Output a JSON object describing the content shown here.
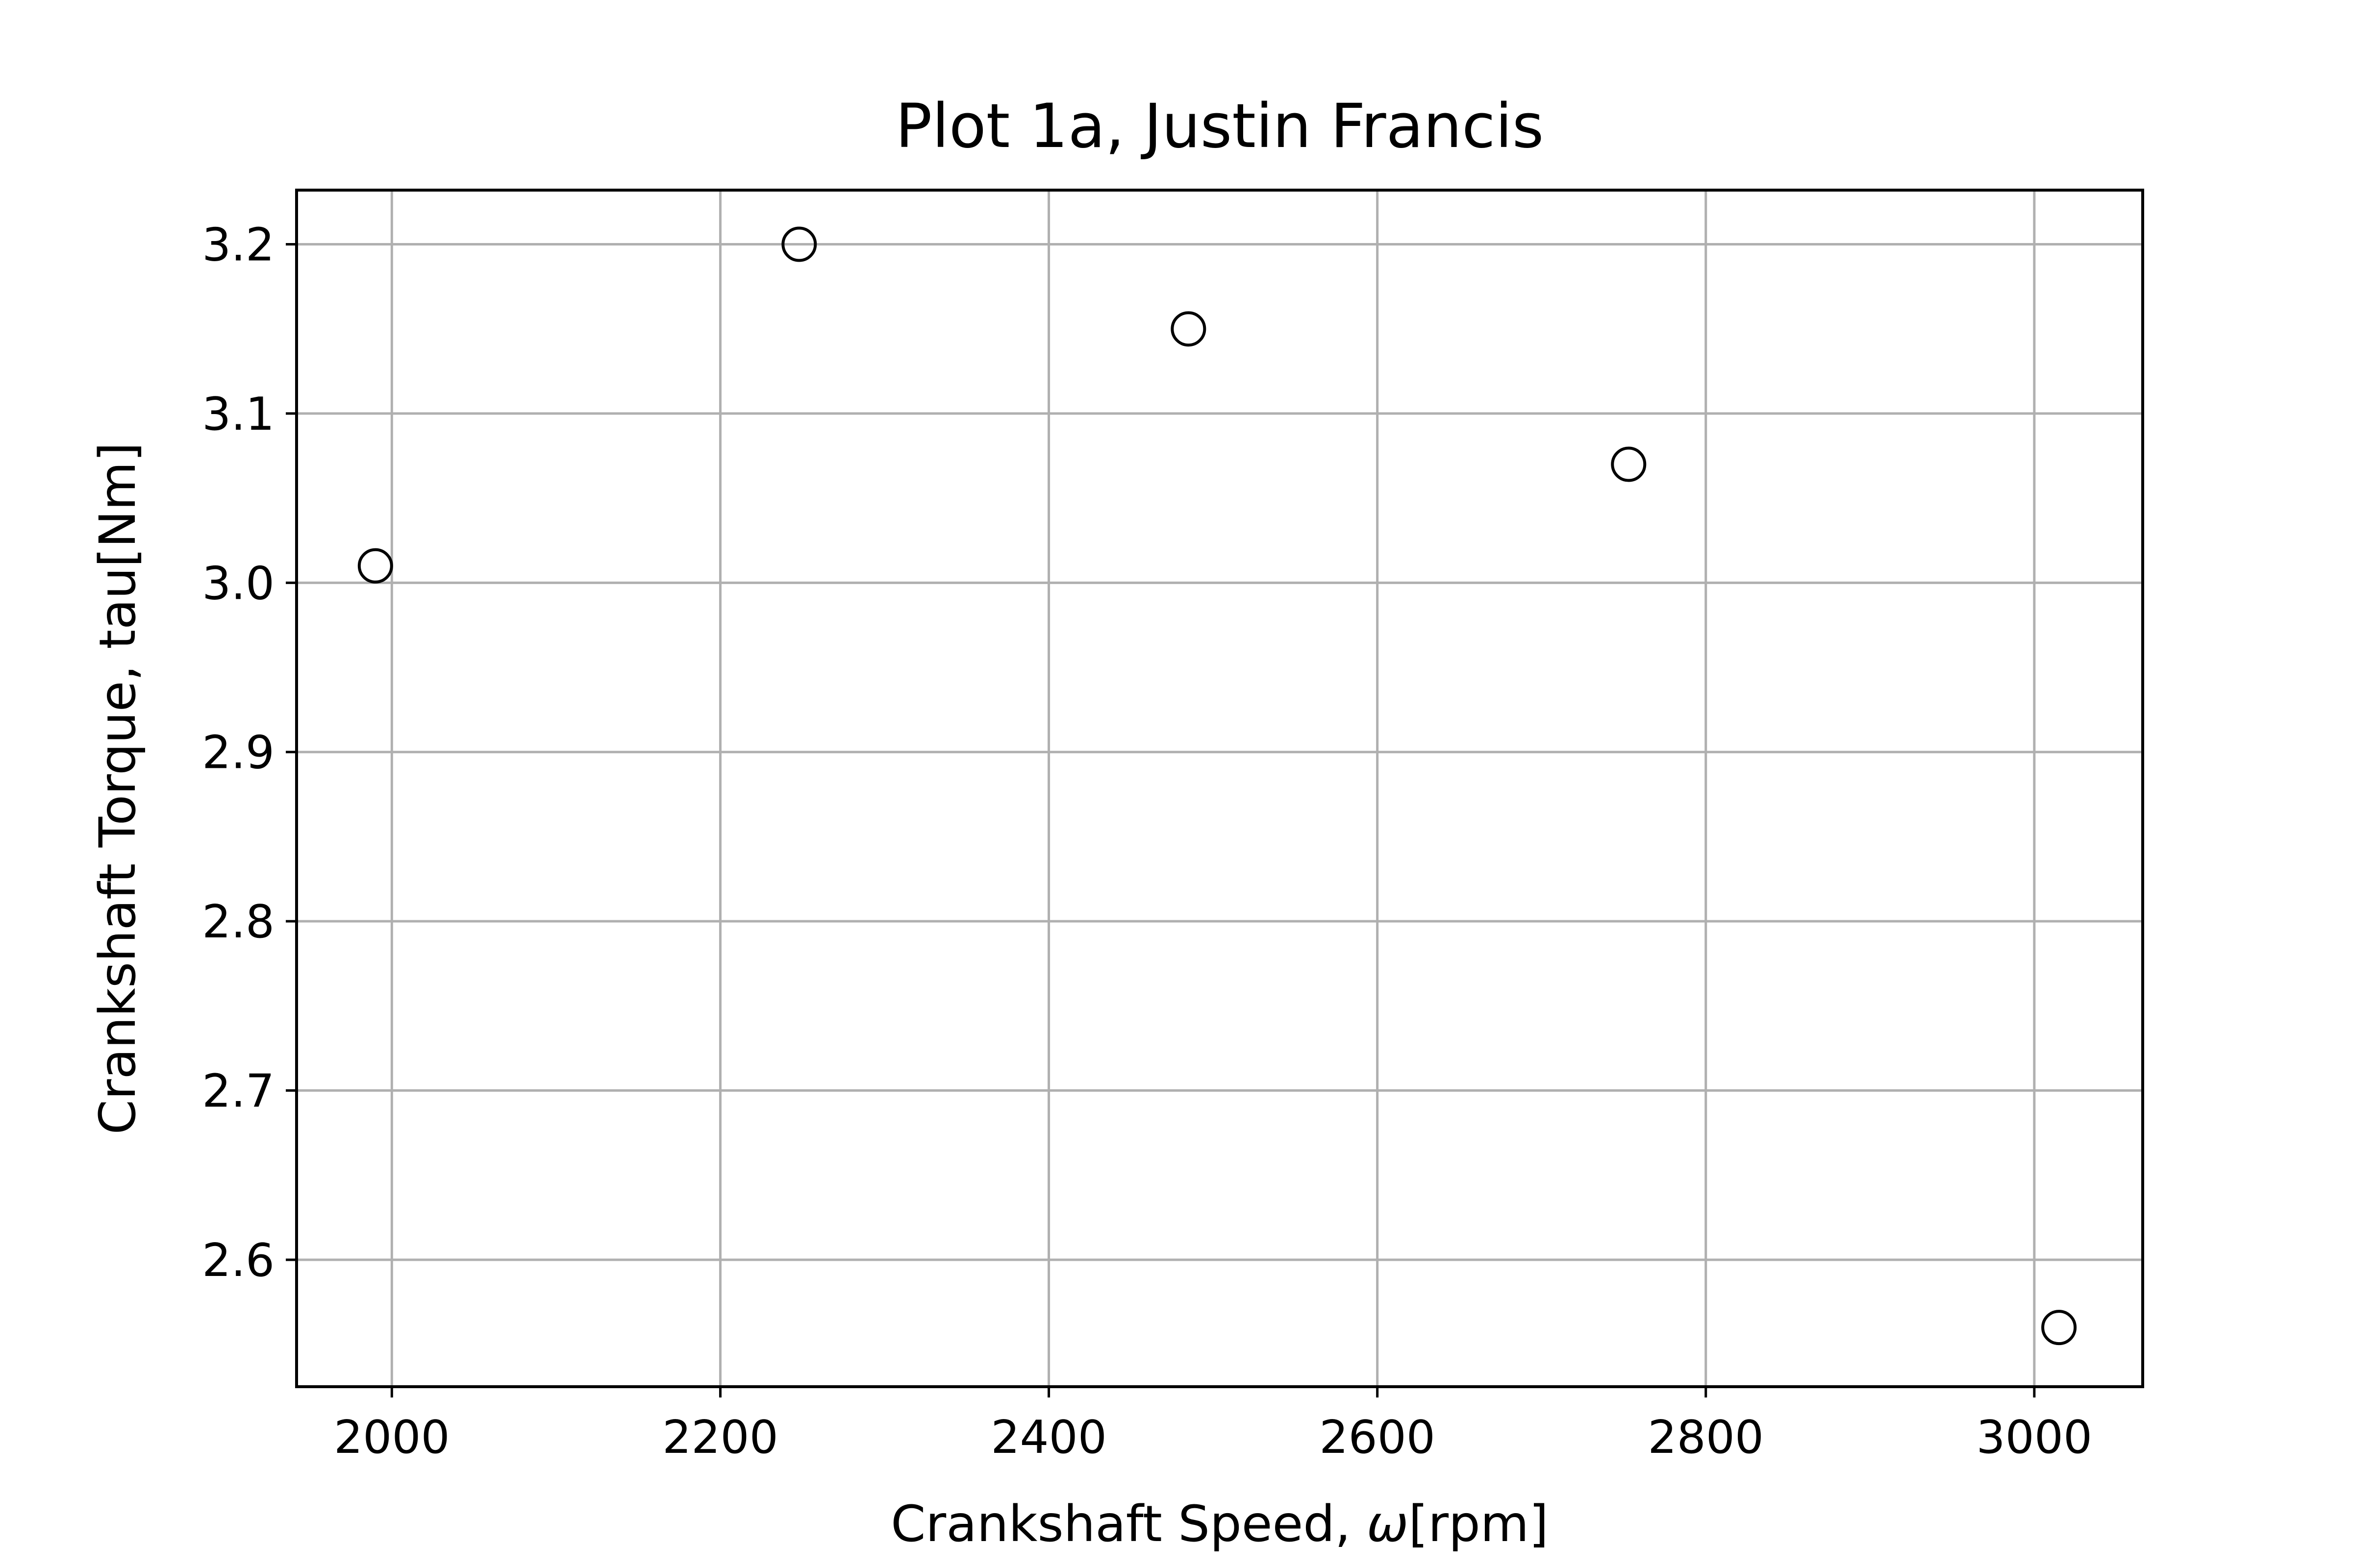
{
  "chart_data": {
    "type": "scatter",
    "title": "Plot 1a, Justin Francis",
    "xlabel_prefix": "Crankshaft Speed, ",
    "xlabel_symbol": "ω",
    "xlabel_suffix": "[rpm]",
    "ylabel": "Crankshaft Torque, tau[Nm]",
    "xlim": [
      1942,
      3066
    ],
    "ylim": [
      2.525,
      3.232
    ],
    "xticks": [
      2000,
      2200,
      2400,
      2600,
      2800,
      3000
    ],
    "yticks": [
      2.6,
      2.7,
      2.8,
      2.9,
      3.0,
      3.1,
      3.2
    ],
    "ytick_decimals": 1,
    "grid": true,
    "marker": "open-circle",
    "marker_color": "#000000",
    "series": [
      {
        "x": [
          1990,
          2248,
          2485,
          2753,
          3015
        ],
        "y": [
          3.01,
          3.2,
          3.15,
          3.07,
          2.56
        ]
      }
    ]
  }
}
